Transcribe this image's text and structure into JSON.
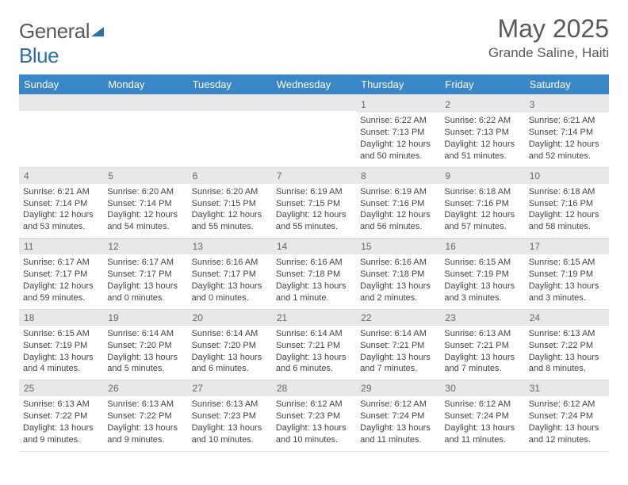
{
  "logo": {
    "part1": "General",
    "part2": "Blue"
  },
  "title": "May 2025",
  "location": "Grande Saline, Haiti",
  "colors": {
    "header_bg": "#3a87c7",
    "header_text": "#ffffff",
    "date_bar_bg": "#e8e8e8",
    "date_text": "#666666",
    "body_text": "#444444",
    "title_text": "#5a5a5a",
    "logo_blue": "#2f6fa8",
    "border": "#d8d8d8",
    "background": "#ffffff"
  },
  "dayNames": [
    "Sunday",
    "Monday",
    "Tuesday",
    "Wednesday",
    "Thursday",
    "Friday",
    "Saturday"
  ],
  "weeks": [
    [
      {
        "date": "",
        "lines": []
      },
      {
        "date": "",
        "lines": []
      },
      {
        "date": "",
        "lines": []
      },
      {
        "date": "",
        "lines": []
      },
      {
        "date": "1",
        "lines": [
          "Sunrise: 6:22 AM",
          "Sunset: 7:13 PM",
          "Daylight: 12 hours and 50 minutes."
        ]
      },
      {
        "date": "2",
        "lines": [
          "Sunrise: 6:22 AM",
          "Sunset: 7:13 PM",
          "Daylight: 12 hours and 51 minutes."
        ]
      },
      {
        "date": "3",
        "lines": [
          "Sunrise: 6:21 AM",
          "Sunset: 7:14 PM",
          "Daylight: 12 hours and 52 minutes."
        ]
      }
    ],
    [
      {
        "date": "4",
        "lines": [
          "Sunrise: 6:21 AM",
          "Sunset: 7:14 PM",
          "Daylight: 12 hours and 53 minutes."
        ]
      },
      {
        "date": "5",
        "lines": [
          "Sunrise: 6:20 AM",
          "Sunset: 7:14 PM",
          "Daylight: 12 hours and 54 minutes."
        ]
      },
      {
        "date": "6",
        "lines": [
          "Sunrise: 6:20 AM",
          "Sunset: 7:15 PM",
          "Daylight: 12 hours and 55 minutes."
        ]
      },
      {
        "date": "7",
        "lines": [
          "Sunrise: 6:19 AM",
          "Sunset: 7:15 PM",
          "Daylight: 12 hours and 55 minutes."
        ]
      },
      {
        "date": "8",
        "lines": [
          "Sunrise: 6:19 AM",
          "Sunset: 7:16 PM",
          "Daylight: 12 hours and 56 minutes."
        ]
      },
      {
        "date": "9",
        "lines": [
          "Sunrise: 6:18 AM",
          "Sunset: 7:16 PM",
          "Daylight: 12 hours and 57 minutes."
        ]
      },
      {
        "date": "10",
        "lines": [
          "Sunrise: 6:18 AM",
          "Sunset: 7:16 PM",
          "Daylight: 12 hours and 58 minutes."
        ]
      }
    ],
    [
      {
        "date": "11",
        "lines": [
          "Sunrise: 6:17 AM",
          "Sunset: 7:17 PM",
          "Daylight: 12 hours and 59 minutes."
        ]
      },
      {
        "date": "12",
        "lines": [
          "Sunrise: 6:17 AM",
          "Sunset: 7:17 PM",
          "Daylight: 13 hours and 0 minutes."
        ]
      },
      {
        "date": "13",
        "lines": [
          "Sunrise: 6:16 AM",
          "Sunset: 7:17 PM",
          "Daylight: 13 hours and 0 minutes."
        ]
      },
      {
        "date": "14",
        "lines": [
          "Sunrise: 6:16 AM",
          "Sunset: 7:18 PM",
          "Daylight: 13 hours and 1 minute."
        ]
      },
      {
        "date": "15",
        "lines": [
          "Sunrise: 6:16 AM",
          "Sunset: 7:18 PM",
          "Daylight: 13 hours and 2 minutes."
        ]
      },
      {
        "date": "16",
        "lines": [
          "Sunrise: 6:15 AM",
          "Sunset: 7:19 PM",
          "Daylight: 13 hours and 3 minutes."
        ]
      },
      {
        "date": "17",
        "lines": [
          "Sunrise: 6:15 AM",
          "Sunset: 7:19 PM",
          "Daylight: 13 hours and 3 minutes."
        ]
      }
    ],
    [
      {
        "date": "18",
        "lines": [
          "Sunrise: 6:15 AM",
          "Sunset: 7:19 PM",
          "Daylight: 13 hours and 4 minutes."
        ]
      },
      {
        "date": "19",
        "lines": [
          "Sunrise: 6:14 AM",
          "Sunset: 7:20 PM",
          "Daylight: 13 hours and 5 minutes."
        ]
      },
      {
        "date": "20",
        "lines": [
          "Sunrise: 6:14 AM",
          "Sunset: 7:20 PM",
          "Daylight: 13 hours and 6 minutes."
        ]
      },
      {
        "date": "21",
        "lines": [
          "Sunrise: 6:14 AM",
          "Sunset: 7:21 PM",
          "Daylight: 13 hours and 6 minutes."
        ]
      },
      {
        "date": "22",
        "lines": [
          "Sunrise: 6:14 AM",
          "Sunset: 7:21 PM",
          "Daylight: 13 hours and 7 minutes."
        ]
      },
      {
        "date": "23",
        "lines": [
          "Sunrise: 6:13 AM",
          "Sunset: 7:21 PM",
          "Daylight: 13 hours and 7 minutes."
        ]
      },
      {
        "date": "24",
        "lines": [
          "Sunrise: 6:13 AM",
          "Sunset: 7:22 PM",
          "Daylight: 13 hours and 8 minutes."
        ]
      }
    ],
    [
      {
        "date": "25",
        "lines": [
          "Sunrise: 6:13 AM",
          "Sunset: 7:22 PM",
          "Daylight: 13 hours and 9 minutes."
        ]
      },
      {
        "date": "26",
        "lines": [
          "Sunrise: 6:13 AM",
          "Sunset: 7:22 PM",
          "Daylight: 13 hours and 9 minutes."
        ]
      },
      {
        "date": "27",
        "lines": [
          "Sunrise: 6:13 AM",
          "Sunset: 7:23 PM",
          "Daylight: 13 hours and 10 minutes."
        ]
      },
      {
        "date": "28",
        "lines": [
          "Sunrise: 6:12 AM",
          "Sunset: 7:23 PM",
          "Daylight: 13 hours and 10 minutes."
        ]
      },
      {
        "date": "29",
        "lines": [
          "Sunrise: 6:12 AM",
          "Sunset: 7:24 PM",
          "Daylight: 13 hours and 11 minutes."
        ]
      },
      {
        "date": "30",
        "lines": [
          "Sunrise: 6:12 AM",
          "Sunset: 7:24 PM",
          "Daylight: 13 hours and 11 minutes."
        ]
      },
      {
        "date": "31",
        "lines": [
          "Sunrise: 6:12 AM",
          "Sunset: 7:24 PM",
          "Daylight: 13 hours and 12 minutes."
        ]
      }
    ]
  ]
}
